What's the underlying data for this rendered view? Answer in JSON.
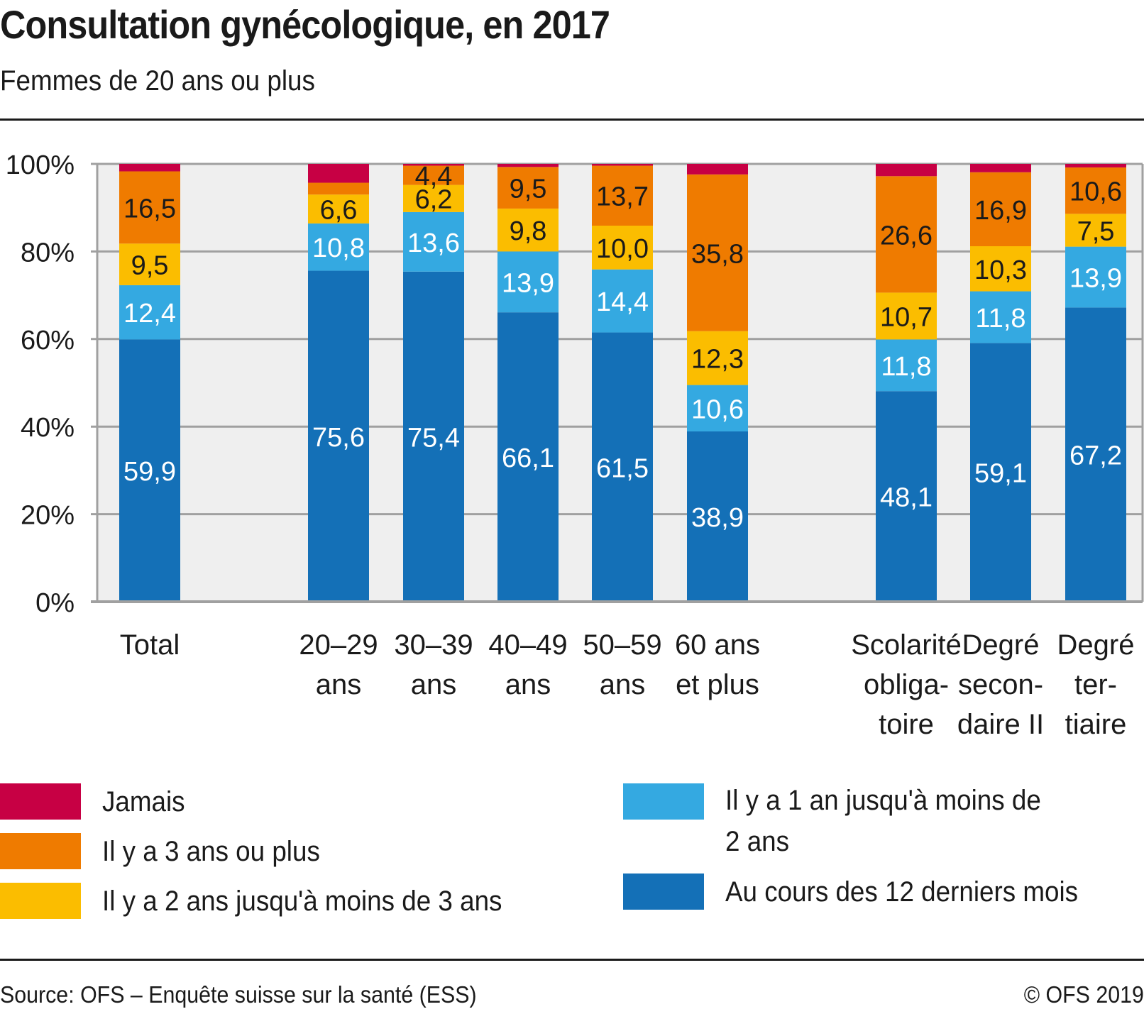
{
  "header": {
    "title": "Consultation gynécologique, en 2017",
    "subtitle": "Femmes de 20 ans ou plus"
  },
  "footer": {
    "source": "Source: OFS – Enquête suisse sur la santé (ESS)",
    "copyright": "© OFS 2019"
  },
  "chart_data": {
    "type": "bar",
    "stacked": true,
    "title": "Consultation gynécologique, en 2017",
    "subtitle": "Femmes de 20 ans ou plus",
    "xlabel": "",
    "ylabel": "",
    "ylim": [
      0,
      100
    ],
    "y_ticks": [
      "0%",
      "20%",
      "40%",
      "60%",
      "80%",
      "100%"
    ],
    "y_tick_values": [
      0,
      20,
      40,
      60,
      80,
      100
    ],
    "grid": true,
    "legend_position": "bottom",
    "categories": [
      {
        "lines": [
          "Total"
        ],
        "group": 0
      },
      {
        "lines": [
          "20–29",
          "ans"
        ],
        "group": 1
      },
      {
        "lines": [
          "30–39",
          "ans"
        ],
        "group": 1
      },
      {
        "lines": [
          "40–49",
          "ans"
        ],
        "group": 1
      },
      {
        "lines": [
          "50–59",
          "ans"
        ],
        "group": 1
      },
      {
        "lines": [
          "60 ans",
          "et plus"
        ],
        "group": 1
      },
      {
        "lines": [
          "Scolarité",
          "obliga-",
          "toire"
        ],
        "group": 2
      },
      {
        "lines": [
          "Degré",
          "secon-",
          "daire II"
        ],
        "group": 2
      },
      {
        "lines": [
          "Degré",
          "ter-",
          "tiaire"
        ],
        "group": 2
      }
    ],
    "series": [
      {
        "name": "Au cours des 12 derniers mois",
        "color": "#1470b7",
        "label_color": "#ffffff",
        "values": [
          59.9,
          75.6,
          75.4,
          66.1,
          61.5,
          38.9,
          48.1,
          59.1,
          67.2
        ],
        "labels": [
          "59,9",
          "75,6",
          "75,4",
          "66,1",
          "61,5",
          "38,9",
          "48,1",
          "59,1",
          "67,2"
        ]
      },
      {
        "name": "Il y a 1 an jusqu'à moins de 2 ans",
        "color": "#34a9e1",
        "label_color": "#ffffff",
        "values": [
          12.4,
          10.8,
          13.6,
          13.9,
          14.4,
          10.6,
          11.8,
          11.8,
          13.9
        ],
        "labels": [
          "12,4",
          "10,8",
          "13,6",
          "13,9",
          "14,4",
          "10,6",
          "11,8",
          "11,8",
          "13,9"
        ]
      },
      {
        "name": "Il y a 2 ans jusqu'à moins de 3 ans",
        "color": "#fbbd00",
        "label_color": "#1a1a1a",
        "values": [
          9.5,
          6.6,
          6.2,
          9.8,
          10.0,
          12.3,
          10.7,
          10.3,
          7.5
        ],
        "labels": [
          "9,5",
          "6,6",
          "6,2",
          "9,8",
          "10,0",
          "12,3",
          "10,7",
          "10,3",
          "7,5"
        ]
      },
      {
        "name": "Il y a 3 ans ou plus",
        "color": "#ef7b00",
        "label_color": "#1a1a1a",
        "values": [
          16.5,
          2.7,
          4.4,
          9.5,
          13.7,
          35.8,
          26.6,
          16.9,
          10.6
        ],
        "labels": [
          "16,5",
          "",
          "4,4",
          "9,5",
          "13,7",
          "35,8",
          "26,6",
          "16,9",
          "10,6"
        ]
      },
      {
        "name": "Jamais",
        "color": "#c70044",
        "label_color": "#ffffff",
        "values": [
          1.7,
          4.3,
          0.4,
          0.7,
          0.4,
          2.4,
          2.8,
          1.9,
          0.8
        ],
        "labels": [
          "",
          "",
          "",
          "",
          "",
          "",
          "",
          "",
          ""
        ]
      }
    ]
  },
  "legend": {
    "items": [
      {
        "label": "Jamais",
        "color": "#c70044"
      },
      {
        "label": "Il y a 3 ans ou plus",
        "color": "#ef7b00"
      },
      {
        "label": "Il y a 2 ans jusqu'à moins de 3 ans",
        "color": "#fbbd00"
      },
      {
        "label": "Il y a 1 an jusqu'à moins de 2 ans",
        "color": "#34a9e1"
      },
      {
        "label": "Au cours des 12 derniers mois",
        "color": "#1470b7"
      }
    ]
  }
}
